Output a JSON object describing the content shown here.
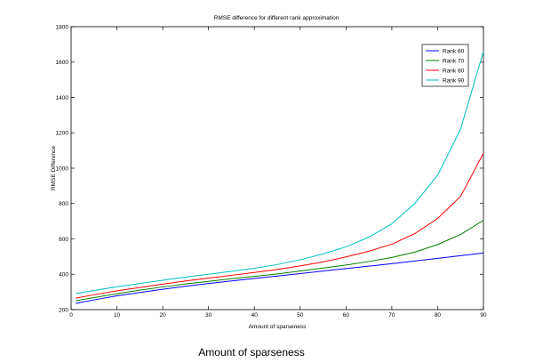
{
  "chart_data": {
    "type": "line",
    "title": "RMSE difference for different rank approximation",
    "xlabel": "Amount of sparseness",
    "ylabel": "RMSE Difference",
    "caption": "Amount of sparseness",
    "xlim": [
      0,
      90
    ],
    "ylim": [
      200,
      1800
    ],
    "xticks": [
      0,
      10,
      20,
      30,
      40,
      50,
      60,
      70,
      80,
      90
    ],
    "yticks": [
      200,
      400,
      600,
      800,
      1000,
      1200,
      1400,
      1600,
      1800
    ],
    "grid": false,
    "legend_position": "top-right",
    "x": [
      1,
      5,
      10,
      15,
      20,
      25,
      30,
      35,
      40,
      45,
      50,
      55,
      60,
      65,
      70,
      75,
      80,
      85,
      90
    ],
    "series": [
      {
        "name": "Rank 60",
        "color": "#0000ff",
        "values": [
          235,
          255,
          278,
          297,
          315,
          332,
          348,
          362,
          376,
          390,
          404,
          418,
          432,
          446,
          460,
          475,
          490,
          505,
          520
        ]
      },
      {
        "name": "Rank 70",
        "color": "#007f00",
        "values": [
          250,
          268,
          290,
          310,
          328,
          345,
          360,
          375,
          388,
          402,
          418,
          435,
          452,
          472,
          495,
          525,
          568,
          625,
          705
        ]
      },
      {
        "name": "Rank 80",
        "color": "#ff0000",
        "values": [
          265,
          284,
          306,
          325,
          344,
          362,
          378,
          394,
          410,
          427,
          447,
          470,
          498,
          530,
          570,
          630,
          715,
          840,
          1085
        ]
      },
      {
        "name": "Rank 90",
        "color": "#00bfbf",
        "values": [
          290,
          308,
          329,
          348,
          366,
          384,
          400,
          417,
          434,
          455,
          482,
          515,
          555,
          610,
          685,
          800,
          960,
          1220,
          1660
        ]
      }
    ]
  }
}
